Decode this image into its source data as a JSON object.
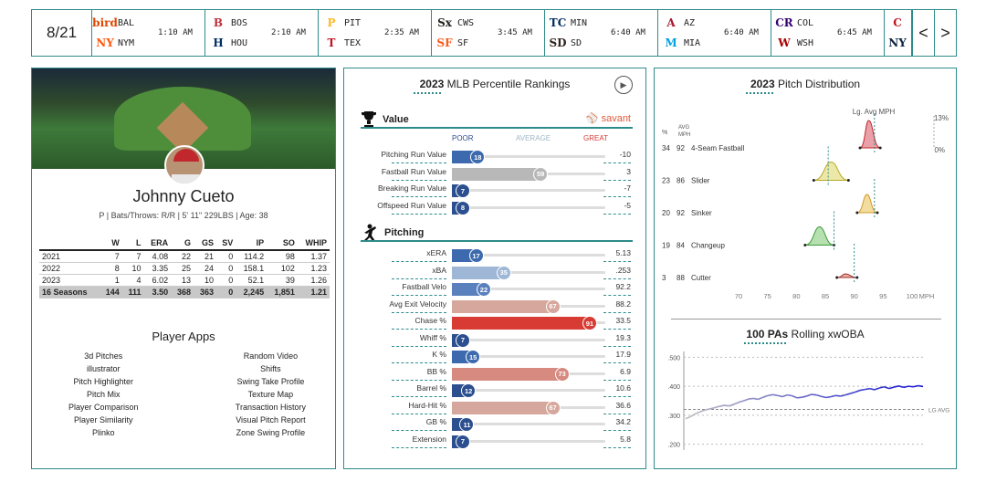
{
  "scoreboard": {
    "date": "8/21",
    "games": [
      {
        "away": "BAL",
        "home": "NYM",
        "time": "1:10 AM",
        "away_logo": "bird",
        "home_logo": "NY",
        "away_color": "#df4601",
        "home_color": "#ff5910"
      },
      {
        "away": "BOS",
        "home": "HOU",
        "time": "2:10 AM",
        "away_logo": "B",
        "home_logo": "H",
        "away_color": "#bd3039",
        "home_color": "#002d62"
      },
      {
        "away": "PIT",
        "home": "TEX",
        "time": "2:35 AM",
        "away_logo": "P",
        "home_logo": "T",
        "away_color": "#fdb827",
        "home_color": "#c0111f"
      },
      {
        "away": "CWS",
        "home": "SF",
        "time": "3:45 AM",
        "away_logo": "Sx",
        "home_logo": "SF",
        "away_color": "#27251f",
        "home_color": "#fd5a1e"
      },
      {
        "away": "MIN",
        "home": "SD",
        "time": "6:40 AM",
        "away_logo": "TC",
        "home_logo": "SD",
        "away_color": "#002b5c",
        "home_color": "#2f241d"
      },
      {
        "away": "AZ",
        "home": "MIA",
        "time": "6:40 AM",
        "away_logo": "A",
        "home_logo": "M",
        "away_color": "#a71930",
        "home_color": "#00a3e0"
      },
      {
        "away": "COL",
        "home": "WSH",
        "time": "6:45 AM",
        "away_logo": "CR",
        "home_logo": "W",
        "away_color": "#33006f",
        "home_color": "#ab0003"
      }
    ],
    "partial_game": {
      "away_logo": "C",
      "home_logo": "NY",
      "away_color": "#c0111f",
      "home_color": "#0c2340"
    },
    "prev_label": "<",
    "next_label": ">"
  },
  "player": {
    "name": "Johnny Cueto",
    "info": "P | Bats/Throws: R/R | 5' 11\" 229LBS | Age: 38",
    "stats_headers": [
      "",
      "W",
      "L",
      "ERA",
      "G",
      "GS",
      "SV",
      "IP",
      "SO",
      "WHIP"
    ],
    "stats_rows": [
      [
        "2021",
        "7",
        "7",
        "4.08",
        "22",
        "21",
        "0",
        "114.2",
        "98",
        "1.37"
      ],
      [
        "2022",
        "8",
        "10",
        "3.35",
        "25",
        "24",
        "0",
        "158.1",
        "102",
        "1.23"
      ],
      [
        "2023",
        "1",
        "4",
        "6.02",
        "13",
        "10",
        "0",
        "52.1",
        "39",
        "1.26"
      ]
    ],
    "stats_total": [
      "16 Seasons",
      "144",
      "111",
      "3.50",
      "368",
      "363",
      "0",
      "2,245",
      "1,851",
      "1.21"
    ],
    "apps_title": "Player Apps",
    "apps_left": [
      "3d Pitches",
      "illustrator",
      "Pitch Highlighter",
      "Pitch Mix",
      "Player Comparison",
      "Player Similarity",
      "Plinko"
    ],
    "apps_right": [
      "Random Video",
      "Shifts",
      "Swing Take Profile",
      "Texture Map",
      "Transaction History",
      "Visual Pitch Report",
      "Zone Swing Profile"
    ]
  },
  "percentile": {
    "title_year": "2023",
    "title_rest": "MLB Percentile Rankings",
    "savant_label": "savant",
    "scale": {
      "poor": "POOR",
      "average": "AVERAGE",
      "great": "GREAT"
    },
    "value_section": "Value",
    "value_metrics": [
      {
        "label": "Pitching Run Value",
        "pct": 18,
        "value": "-10",
        "color": "#3d6aae"
      },
      {
        "label": "Fastball Run Value",
        "pct": 59,
        "value": "3",
        "color": "#b8b8b8"
      },
      {
        "label": "Breaking Run Value",
        "pct": 7,
        "value": "-7",
        "color": "#2b4f8f"
      },
      {
        "label": "Offspeed Run Value",
        "pct": 8,
        "value": "-5",
        "color": "#2b4f8f"
      }
    ],
    "pitching_section": "Pitching",
    "pitching_metrics": [
      {
        "label": "xERA",
        "pct": 17,
        "value": "5.13",
        "color": "#3d6aae"
      },
      {
        "label": "xBA",
        "pct": 35,
        "value": ".253",
        "color": "#9fb7d6"
      },
      {
        "label": "Fastball Velo",
        "pct": 22,
        "value": "92.2",
        "color": "#5a80bd"
      },
      {
        "label": "Avg Exit Velocity",
        "pct": 67,
        "value": "88.2",
        "color": "#d6a79c"
      },
      {
        "label": "Chase %",
        "pct": 91,
        "value": "33.5",
        "color": "#d73b33"
      },
      {
        "label": "Whiff %",
        "pct": 7,
        "value": "19.3",
        "color": "#2b4f8f"
      },
      {
        "label": "K %",
        "pct": 15,
        "value": "17.9",
        "color": "#3d6aae"
      },
      {
        "label": "BB %",
        "pct": 73,
        "value": "6.9",
        "color": "#d68a80"
      },
      {
        "label": "Barrel %",
        "pct": 12,
        "value": "10.6",
        "color": "#2b4f8f"
      },
      {
        "label": "Hard-Hit %",
        "pct": 67,
        "value": "36.6",
        "color": "#d6a79c"
      },
      {
        "label": "GB %",
        "pct": 11,
        "value": "34.2",
        "color": "#2b4f8f"
      },
      {
        "label": "Extension",
        "pct": 7,
        "value": "5.8",
        "color": "#2b4f8f"
      }
    ]
  },
  "pitch_dist": {
    "title_year": "2023",
    "title_rest": "Pitch Distribution",
    "lg_avg_label": "Lg. Avg MPH",
    "col_pct": "%",
    "col_avg": "AVG",
    "col_mph": "MPH",
    "pct_max": "13%",
    "pct_min": "0%",
    "pitches": [
      {
        "pct": "34",
        "mph": "92",
        "name": "4-Seam Fastball",
        "color": "#e9a0a8",
        "stroke": "#c0282d",
        "lg": 93.5,
        "lo": 91,
        "hi": 94.5,
        "peak": 92.5
      },
      {
        "pct": "23",
        "mph": "86",
        "name": "Slider",
        "color": "#ece8a8",
        "stroke": "#b9a92a",
        "lg": 85.5,
        "lo": 83,
        "hi": 89,
        "peak": 86
      },
      {
        "pct": "20",
        "mph": "92",
        "name": "Sinker",
        "color": "#f2dca0",
        "stroke": "#d39a2a",
        "lg": 93.5,
        "lo": 90.5,
        "hi": 94,
        "peak": 92.2
      },
      {
        "pct": "19",
        "mph": "84",
        "name": "Changeup",
        "color": "#b7e0b0",
        "stroke": "#3a9a3a",
        "lg": 86.5,
        "lo": 81.5,
        "hi": 86.5,
        "peak": 84
      },
      {
        "pct": "3",
        "mph": "88",
        "name": "Cutter",
        "color": "#e9b0a0",
        "stroke": "#a03030",
        "lg": 90,
        "lo": 87,
        "hi": 90.5,
        "peak": 88.5
      }
    ],
    "x_ticks": [
      "70",
      "75",
      "80",
      "85",
      "90",
      "95",
      "100"
    ],
    "x_unit": "MPH"
  },
  "chart_data": {
    "type": "line",
    "title": "100 PAs Rolling xwOBA",
    "y_ticks": [
      ".500",
      ".400",
      ".300",
      ".200"
    ],
    "ylim": [
      0.18,
      0.52
    ],
    "league_avg": 0.32,
    "league_avg_label": "LG AVG",
    "series": [
      {
        "values": [
          0.288,
          0.295,
          0.305,
          0.312,
          0.318,
          0.322,
          0.326,
          0.331,
          0.334,
          0.332,
          0.338,
          0.345,
          0.35,
          0.356,
          0.358,
          0.355,
          0.362,
          0.368,
          0.371,
          0.368,
          0.364,
          0.37,
          0.367,
          0.36,
          0.362,
          0.366,
          0.372,
          0.37,
          0.365,
          0.361,
          0.364,
          0.368,
          0.366,
          0.37,
          0.375,
          0.38,
          0.386,
          0.389,
          0.392,
          0.388,
          0.394,
          0.398,
          0.392,
          0.397,
          0.401,
          0.396,
          0.4,
          0.398,
          0.402,
          0.399
        ]
      }
    ]
  }
}
